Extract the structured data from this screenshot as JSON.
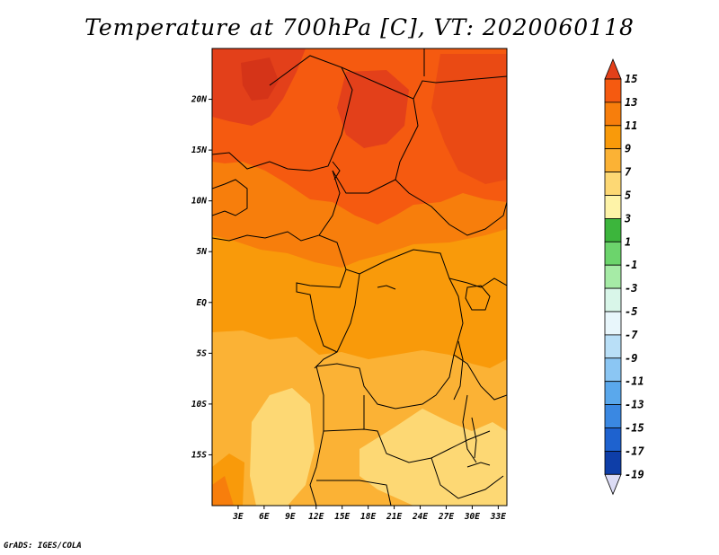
{
  "title": "Temperature at 700hPa [C], VT: 2020060118",
  "credit": "GrADS: IGES/COLA",
  "map": {
    "lon_range": [
      0,
      34
    ],
    "lat_range": [
      -20,
      25
    ],
    "x_ticks": [
      "3E",
      "6E",
      "9E",
      "12E",
      "15E",
      "18E",
      "21E",
      "24E",
      "27E",
      "30E",
      "33E"
    ],
    "x_tick_values": [
      3,
      6,
      9,
      12,
      15,
      18,
      21,
      24,
      27,
      30,
      33
    ],
    "y_ticks": [
      "20N",
      "15N",
      "10N",
      "5N",
      "EQ",
      "5S",
      "10S",
      "15S"
    ],
    "y_tick_values": [
      20,
      15,
      10,
      5,
      0,
      -5,
      -10,
      -15
    ]
  },
  "colorbar": {
    "labels": [
      "15",
      "13",
      "11",
      "9",
      "7",
      "5",
      "3",
      "1",
      "-1",
      "-3",
      "-5",
      "-7",
      "-9",
      "-11",
      "-13",
      "-15",
      "-17",
      "-19"
    ],
    "colors": [
      "#e3401a",
      "#f55a10",
      "#f77e0c",
      "#f99a0a",
      "#fbb235",
      "#fdd874",
      "#fef3a8",
      "#3cb53c",
      "#6cd46c",
      "#a6eba6",
      "#d9f6e9",
      "#e8f6fb",
      "#b9dff7",
      "#8bc6f3",
      "#5aa8ec",
      "#3a88e2",
      "#1e62cf",
      "#0e3ea8",
      "#0a1e7a",
      "#dcdcf5"
    ]
  }
}
